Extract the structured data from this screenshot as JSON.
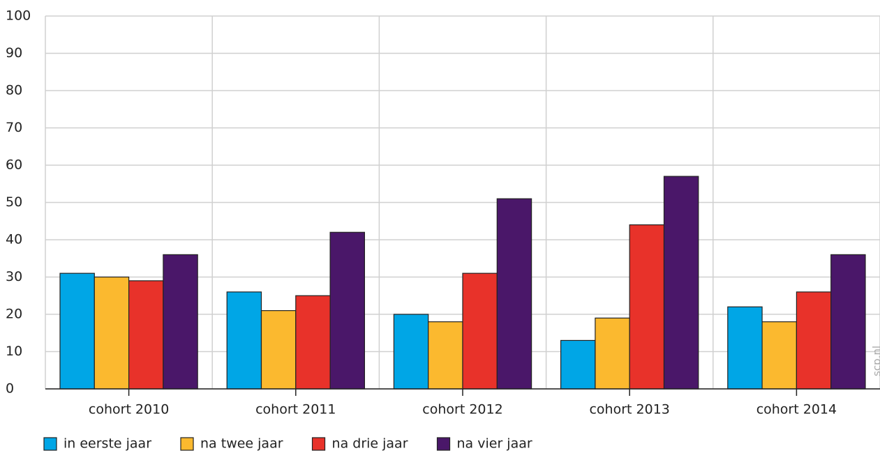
{
  "chart_data": {
    "type": "bar",
    "categories": [
      "cohort 2010",
      "cohort 2011",
      "cohort 2012",
      "cohort 2013",
      "cohort 2014"
    ],
    "series": [
      {
        "name": "in eerste jaar",
        "color": "#00a6e6",
        "values": [
          31,
          26,
          20,
          13,
          22
        ]
      },
      {
        "name": "na twee jaar",
        "color": "#fbb92f",
        "values": [
          30,
          21,
          18,
          19,
          18
        ]
      },
      {
        "name": "na drie jaar",
        "color": "#e8322a",
        "values": [
          29,
          25,
          31,
          44,
          26
        ]
      },
      {
        "name": "na vier jaar",
        "color": "#4a1769",
        "values": [
          36,
          42,
          51,
          57,
          36
        ]
      }
    ],
    "ylim": [
      0,
      100
    ],
    "yticks": [
      0,
      10,
      20,
      30,
      40,
      50,
      60,
      70,
      80,
      90,
      100
    ],
    "grid": true,
    "legend": "bottom",
    "watermark": "scp.nl"
  }
}
